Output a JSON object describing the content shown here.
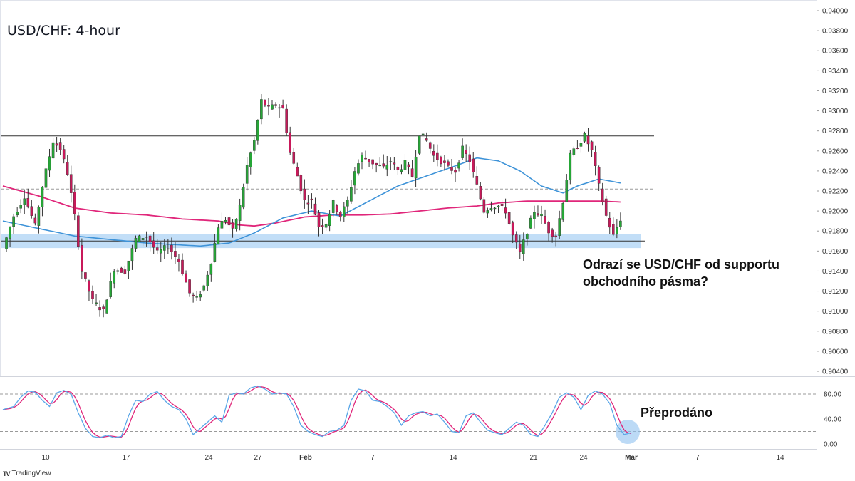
{
  "chart_data": [
    {
      "type": "candlestick",
      "title": "USD/CHF: 4-hour",
      "ylim": [
        0.903,
        0.941
      ],
      "y_ticks": [
        "0.94000",
        "0.93800",
        "0.93600",
        "0.93400",
        "0.93200",
        "0.93000",
        "0.92800",
        "0.92600",
        "0.92400",
        "0.92200",
        "0.92000",
        "0.91800",
        "0.91600",
        "0.91400",
        "0.91200",
        "0.91000",
        "0.90800",
        "0.90600",
        "0.90400"
      ],
      "x_ticks": [
        "10",
        "17",
        "24",
        "27",
        "Feb",
        "7",
        "14",
        "21",
        "24",
        "Mar",
        "7",
        "14"
      ],
      "resistance_level": 0.9275,
      "midrange_level": 0.9222,
      "support_level": 0.917,
      "support_zone": [
        0.9163,
        0.9177
      ],
      "price_path": [
        [
          0,
          0.9162
        ],
        [
          3,
          0.9195
        ],
        [
          6,
          0.9215
        ],
        [
          9,
          0.9185
        ],
        [
          11,
          0.9225
        ],
        [
          14,
          0.927
        ],
        [
          16,
          0.9262
        ],
        [
          18,
          0.9238
        ],
        [
          20,
          0.9195
        ],
        [
          22,
          0.914
        ],
        [
          25,
          0.911
        ],
        [
          28,
          0.91
        ],
        [
          31,
          0.9142
        ],
        [
          34,
          0.914
        ],
        [
          37,
          0.9172
        ],
        [
          40,
          0.9175
        ],
        [
          43,
          0.9158
        ],
        [
          46,
          0.9165
        ],
        [
          49,
          0.915
        ],
        [
          52,
          0.9118
        ],
        [
          54,
          0.9112
        ],
        [
          56,
          0.9125
        ],
        [
          58,
          0.915
        ],
        [
          60,
          0.9185
        ],
        [
          62,
          0.9192
        ],
        [
          64,
          0.918
        ],
        [
          66,
          0.9205
        ],
        [
          68,
          0.9245
        ],
        [
          70,
          0.927
        ],
        [
          72,
          0.931
        ],
        [
          74,
          0.9302
        ],
        [
          76,
          0.9306
        ],
        [
          78,
          0.9302
        ],
        [
          80,
          0.9258
        ],
        [
          82,
          0.9235
        ],
        [
          84,
          0.921
        ],
        [
          86,
          0.921
        ],
        [
          88,
          0.9185
        ],
        [
          90,
          0.9188
        ],
        [
          92,
          0.9208
        ],
        [
          94,
          0.9195
        ],
        [
          96,
          0.921
        ],
        [
          98,
          0.924
        ],
        [
          100,
          0.9255
        ],
        [
          102,
          0.925
        ],
        [
          104,
          0.9246
        ],
        [
          106,
          0.9243
        ],
        [
          108,
          0.925
        ],
        [
          110,
          0.924
        ],
        [
          112,
          0.9248
        ],
        [
          114,
          0.9235
        ],
        [
          116,
          0.9278
        ],
        [
          118,
          0.927
        ],
        [
          120,
          0.9255
        ],
        [
          122,
          0.925
        ],
        [
          124,
          0.9243
        ],
        [
          126,
          0.924
        ],
        [
          128,
          0.9262
        ],
        [
          130,
          0.925
        ],
        [
          132,
          0.9225
        ],
        [
          134,
          0.92
        ],
        [
          136,
          0.9205
        ],
        [
          138,
          0.9205
        ],
        [
          140,
          0.92
        ],
        [
          142,
          0.9175
        ],
        [
          144,
          0.9158
        ],
        [
          146,
          0.918
        ],
        [
          148,
          0.92
        ],
        [
          150,
          0.9195
        ],
        [
          152,
          0.918
        ],
        [
          154,
          0.9175
        ],
        [
          156,
          0.921
        ],
        [
          158,
          0.9255
        ],
        [
          160,
          0.9265
        ],
        [
          162,
          0.9275
        ],
        [
          164,
          0.926
        ],
        [
          166,
          0.9225
        ],
        [
          168,
          0.9195
        ],
        [
          170,
          0.9175
        ],
        [
          172,
          0.9192
        ]
      ],
      "ma_blue": [
        [
          0,
          0.919
        ],
        [
          20,
          0.9175
        ],
        [
          40,
          0.9168
        ],
        [
          55,
          0.9165
        ],
        [
          63,
          0.9168
        ],
        [
          70,
          0.9178
        ],
        [
          78,
          0.9193
        ],
        [
          86,
          0.92
        ],
        [
          94,
          0.9195
        ],
        [
          102,
          0.921
        ],
        [
          110,
          0.9225
        ],
        [
          118,
          0.9235
        ],
        [
          126,
          0.9245
        ],
        [
          132,
          0.9253
        ],
        [
          138,
          0.925
        ],
        [
          144,
          0.924
        ],
        [
          150,
          0.9225
        ],
        [
          156,
          0.9218
        ],
        [
          160,
          0.9225
        ],
        [
          166,
          0.9232
        ],
        [
          172,
          0.9228
        ]
      ],
      "ma_red": [
        [
          0,
          0.9225
        ],
        [
          10,
          0.9215
        ],
        [
          20,
          0.9203
        ],
        [
          30,
          0.9198
        ],
        [
          40,
          0.9196
        ],
        [
          50,
          0.9192
        ],
        [
          60,
          0.919
        ],
        [
          66,
          0.9186
        ],
        [
          70,
          0.9185
        ],
        [
          76,
          0.9188
        ],
        [
          84,
          0.9194
        ],
        [
          92,
          0.9196
        ],
        [
          100,
          0.9196
        ],
        [
          108,
          0.9197
        ],
        [
          116,
          0.92
        ],
        [
          124,
          0.9203
        ],
        [
          132,
          0.9205
        ],
        [
          138,
          0.9208
        ],
        [
          146,
          0.921
        ],
        [
          156,
          0.921
        ],
        [
          166,
          0.921
        ],
        [
          172,
          0.9209
        ]
      ]
    },
    {
      "type": "line",
      "name": "stochastic",
      "ylim": [
        0,
        100
      ],
      "y_ticks": [
        "80.00",
        "40.00",
        "0.00"
      ],
      "overbought": 80,
      "oversold": 20,
      "k_line": [
        [
          0,
          55
        ],
        [
          3,
          60
        ],
        [
          5,
          75
        ],
        [
          7,
          85
        ],
        [
          9,
          83
        ],
        [
          11,
          70
        ],
        [
          13,
          60
        ],
        [
          15,
          82
        ],
        [
          17,
          86
        ],
        [
          19,
          80
        ],
        [
          21,
          50
        ],
        [
          23,
          25
        ],
        [
          25,
          12
        ],
        [
          27,
          10
        ],
        [
          29,
          14
        ],
        [
          31,
          10
        ],
        [
          33,
          12
        ],
        [
          35,
          45
        ],
        [
          37,
          70
        ],
        [
          39,
          68
        ],
        [
          41,
          80
        ],
        [
          43,
          84
        ],
        [
          45,
          70
        ],
        [
          47,
          60
        ],
        [
          49,
          55
        ],
        [
          51,
          40
        ],
        [
          53,
          15
        ],
        [
          55,
          25
        ],
        [
          57,
          35
        ],
        [
          59,
          45
        ],
        [
          61,
          35
        ],
        [
          63,
          78
        ],
        [
          65,
          82
        ],
        [
          67,
          80
        ],
        [
          69,
          90
        ],
        [
          71,
          93
        ],
        [
          73,
          88
        ],
        [
          75,
          80
        ],
        [
          77,
          82
        ],
        [
          79,
          80
        ],
        [
          81,
          60
        ],
        [
          83,
          30
        ],
        [
          85,
          20
        ],
        [
          87,
          15
        ],
        [
          89,
          12
        ],
        [
          91,
          20
        ],
        [
          93,
          22
        ],
        [
          95,
          30
        ],
        [
          97,
          70
        ],
        [
          99,
          88
        ],
        [
          101,
          85
        ],
        [
          103,
          70
        ],
        [
          105,
          68
        ],
        [
          107,
          60
        ],
        [
          109,
          50
        ],
        [
          111,
          30
        ],
        [
          113,
          45
        ],
        [
          115,
          50
        ],
        [
          117,
          52
        ],
        [
          119,
          45
        ],
        [
          121,
          48
        ],
        [
          123,
          35
        ],
        [
          125,
          20
        ],
        [
          127,
          18
        ],
        [
          129,
          45
        ],
        [
          131,
          50
        ],
        [
          133,
          35
        ],
        [
          135,
          22
        ],
        [
          137,
          18
        ],
        [
          139,
          15
        ],
        [
          141,
          25
        ],
        [
          143,
          35
        ],
        [
          145,
          30
        ],
        [
          147,
          15
        ],
        [
          149,
          12
        ],
        [
          151,
          30
        ],
        [
          153,
          50
        ],
        [
          155,
          75
        ],
        [
          157,
          82
        ],
        [
          159,
          75
        ],
        [
          161,
          55
        ],
        [
          163,
          78
        ],
        [
          165,
          85
        ],
        [
          167,
          80
        ],
        [
          169,
          65
        ],
        [
          171,
          30
        ],
        [
          173,
          15
        ],
        [
          175,
          18
        ]
      ]
    }
  ],
  "annotation": {
    "line1": "Odrazí se USD/CHF od supportu",
    "line2": "obchodního pásma?"
  },
  "oscillator_label": "Přeprodáno",
  "footer": {
    "logo": "TV",
    "brand": "TradingView"
  }
}
